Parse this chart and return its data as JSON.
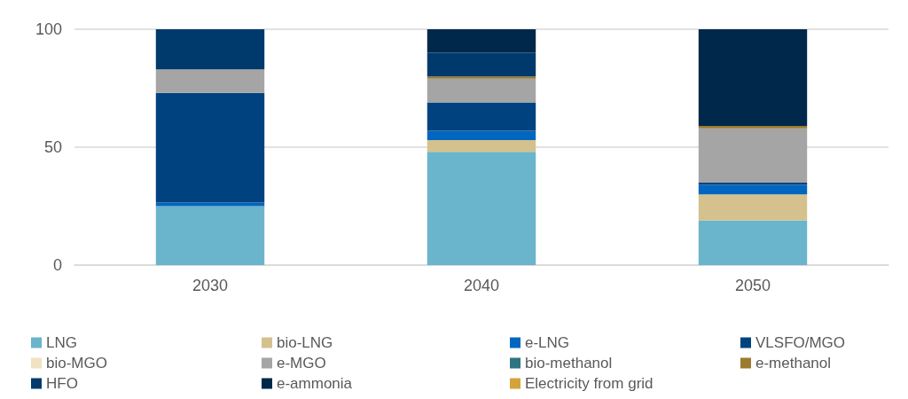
{
  "chart_data": {
    "type": "bar",
    "stacked": true,
    "categories": [
      "2030",
      "2040",
      "2050"
    ],
    "ylim": [
      0,
      100
    ],
    "yticks": [
      0,
      50,
      100
    ],
    "grid": "y",
    "legend": "bottom",
    "series": [
      {
        "name": "LNG",
        "color": "#6ab4cc",
        "values": [
          25,
          48,
          19
        ]
      },
      {
        "name": "bio-LNG",
        "color": "#d4c18e",
        "values": [
          null,
          5,
          11
        ]
      },
      {
        "name": "e-LNG",
        "color": "#0066c0",
        "values": [
          1.5,
          4,
          4
        ]
      },
      {
        "name": "VLSFO/MGO",
        "color": "#00427f",
        "values": [
          46.5,
          12,
          1
        ]
      },
      {
        "name": "bio-MGO",
        "color": "#f1e2c2",
        "values": [
          null,
          null,
          null
        ]
      },
      {
        "name": "e-MGO",
        "color": "#a5a5a5",
        "values": [
          10,
          10,
          23
        ]
      },
      {
        "name": "bio-methanol",
        "color": "#2f7480",
        "values": [
          null,
          null,
          null
        ]
      },
      {
        "name": "e-methanol",
        "color": "#9a7b30",
        "values": [
          null,
          1,
          1
        ]
      },
      {
        "name": "HFO",
        "color": "#003a6c",
        "values": [
          17,
          10,
          null
        ]
      },
      {
        "name": "e-ammonia",
        "color": "#00284a",
        "values": [
          null,
          10,
          41
        ]
      },
      {
        "name": "Electricity from grid",
        "color": "#d4a33a",
        "values": [
          null,
          null,
          null
        ]
      }
    ]
  }
}
